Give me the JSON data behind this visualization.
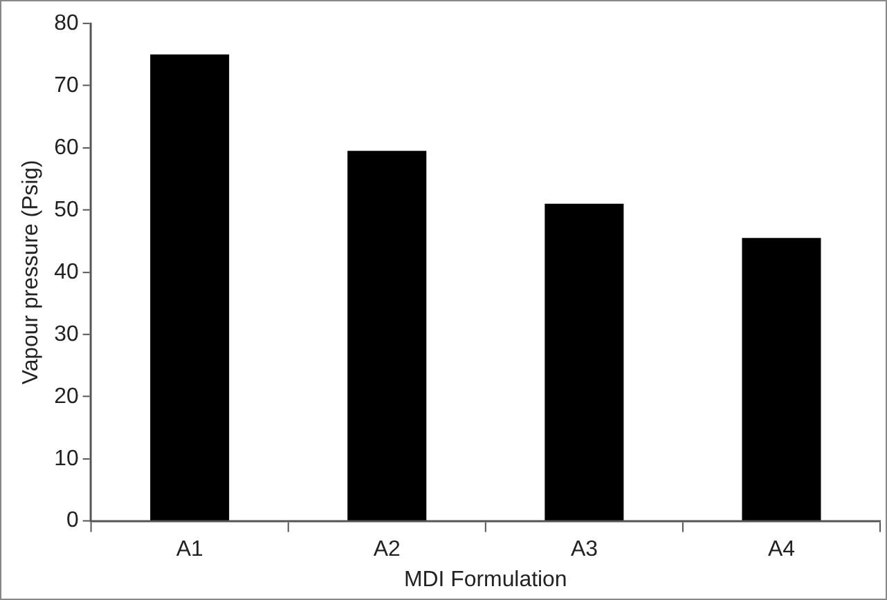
{
  "chart_data": {
    "type": "bar",
    "xlabel": "MDI Formulation",
    "ylabel": "Vapour pressure (Psig)",
    "categories": [
      "A1",
      "A2",
      "A3",
      "A4"
    ],
    "values": [
      75,
      59.5,
      51,
      45.5
    ],
    "color": "#000000",
    "ylim": [
      0,
      80
    ],
    "yticks": [
      0,
      10,
      20,
      30,
      40,
      50,
      60,
      70,
      80
    ],
    "grid": false,
    "legend": false
  }
}
